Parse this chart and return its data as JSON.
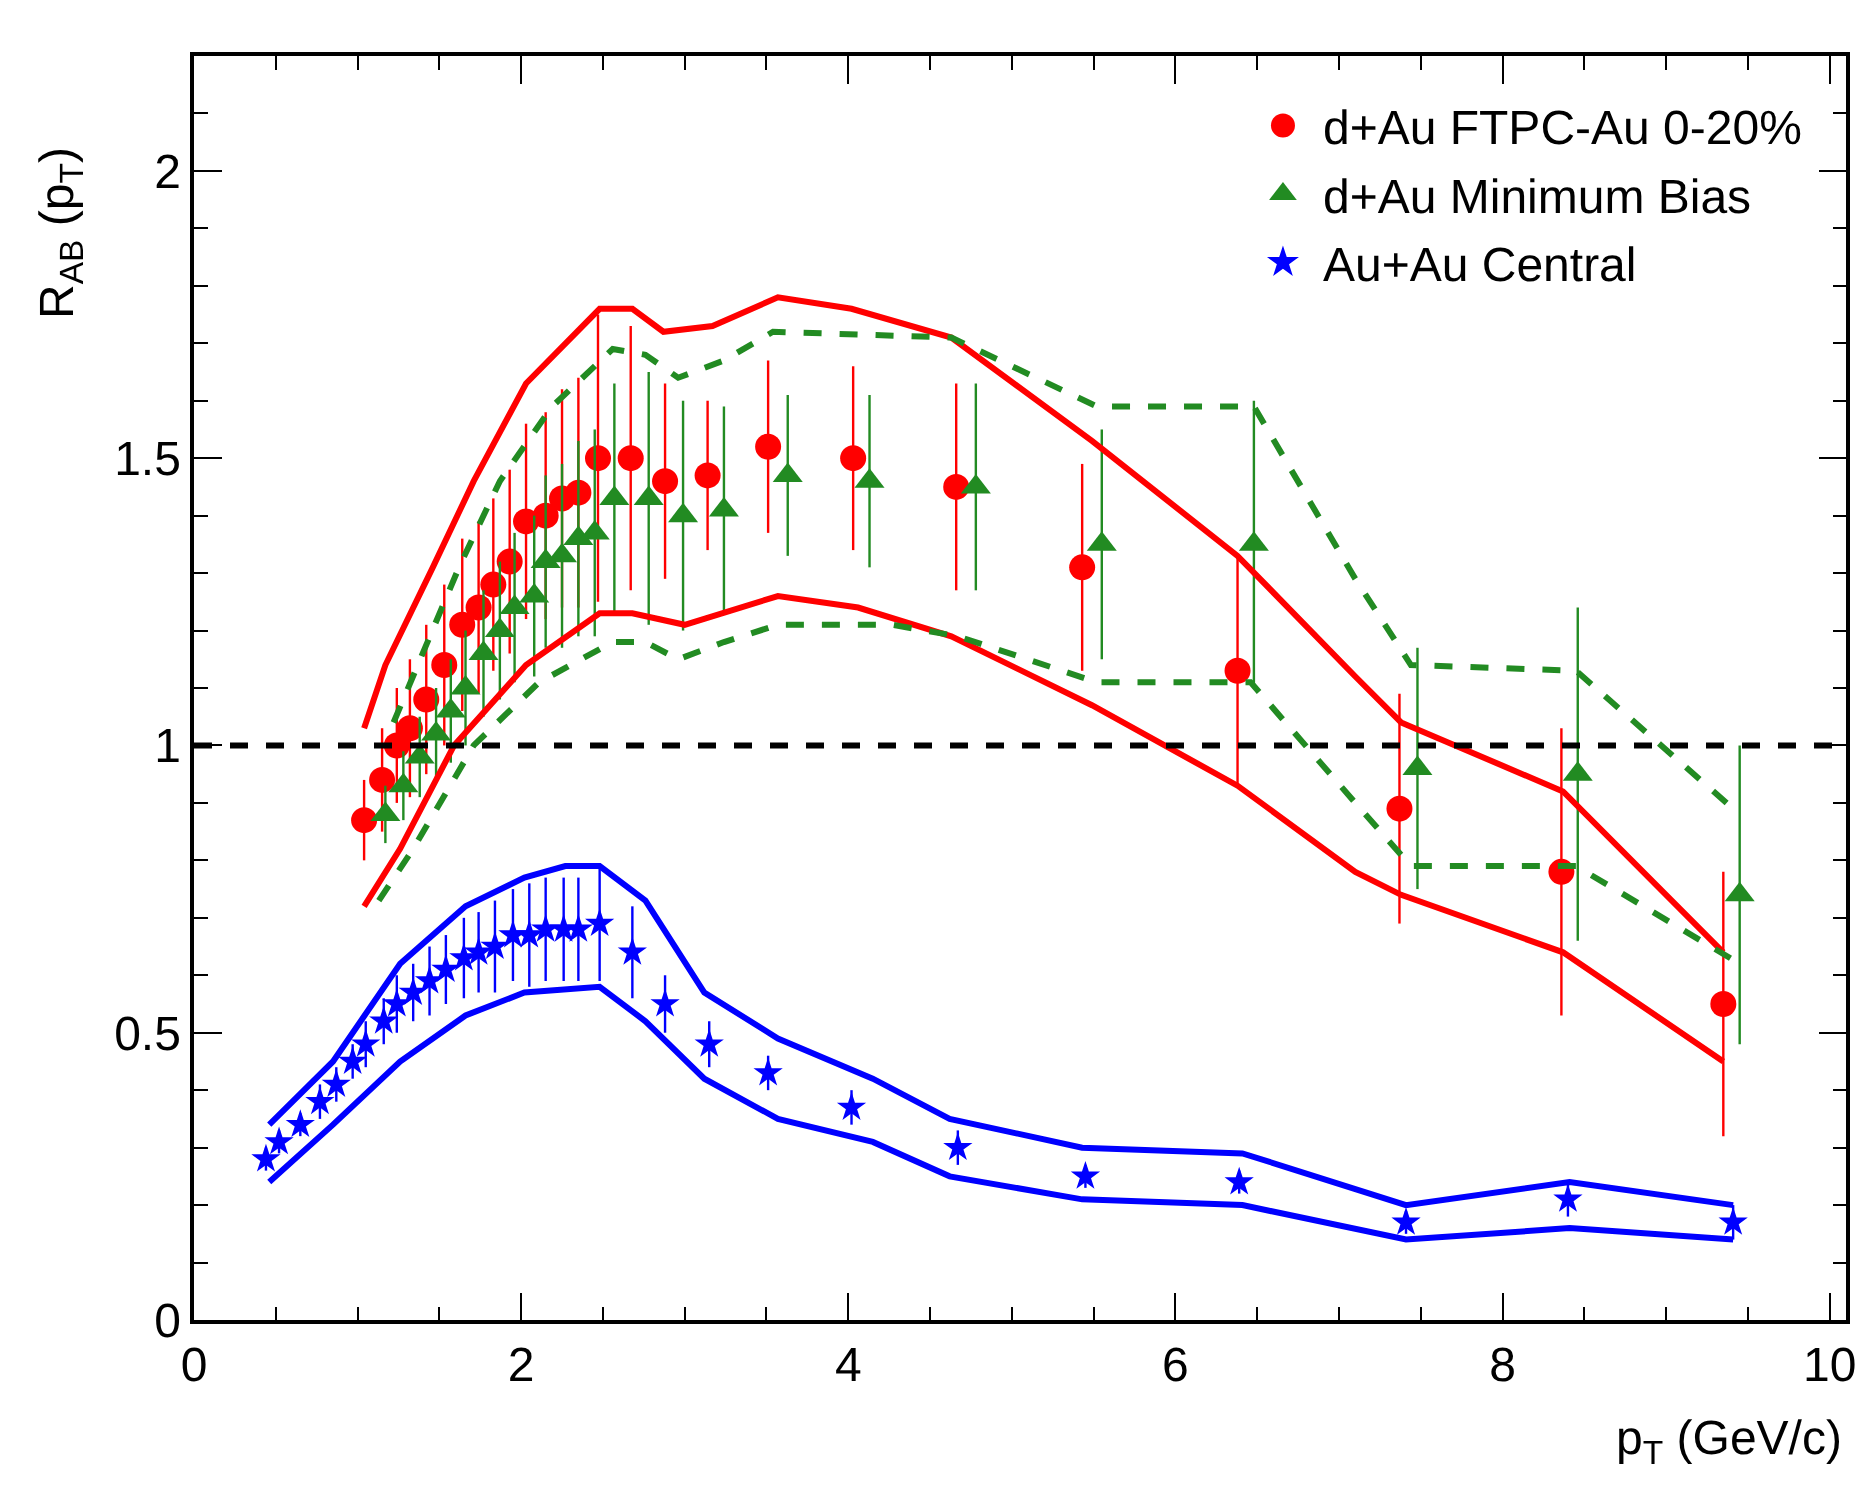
{
  "chart_data": {
    "type": "scatter",
    "xlabel": "p$_{T}$ (GeV/c)",
    "ylabel": "R$_{AB}$ (p$_{T}$)",
    "xlim": [
      0,
      10.1
    ],
    "xticks": [
      0,
      2,
      4,
      6,
      8,
      10
    ],
    "ylim": [
      0,
      2.2
    ],
    "yticks": [
      0,
      0.5,
      1,
      1.5,
      2
    ],
    "grid": false,
    "legend": "top right",
    "ref_lines": [
      {
        "axis": "y",
        "value": 1,
        "color": "#000000",
        "line_style": "dashed"
      }
    ],
    "series": [
      {
        "name": "d+Au FTPC-Au 0-20%",
        "color": "#ff0000",
        "marker": "circle",
        "x": [
          1.04,
          1.15,
          1.24,
          1.32,
          1.42,
          1.53,
          1.64,
          1.74,
          1.83,
          1.93,
          2.03,
          2.15,
          2.25,
          2.35,
          2.47,
          2.67,
          2.88,
          3.14,
          3.51,
          4.03,
          4.66,
          5.43,
          6.38,
          7.37,
          8.36,
          9.35
        ],
        "values": [
          0.87,
          0.94,
          1.0,
          1.03,
          1.08,
          1.14,
          1.21,
          1.24,
          1.28,
          1.32,
          1.39,
          1.4,
          1.43,
          1.44,
          1.5,
          1.5,
          1.46,
          1.47,
          1.52,
          1.5,
          1.45,
          1.31,
          1.13,
          0.89,
          0.78,
          0.55
        ],
        "errors": [
          0.07,
          0.09,
          0.1,
          0.12,
          0.13,
          0.14,
          0.15,
          0.15,
          0.15,
          0.16,
          0.17,
          0.18,
          0.19,
          0.2,
          0.25,
          0.23,
          0.17,
          0.13,
          0.15,
          0.16,
          0.18,
          0.18,
          0.2,
          0.2,
          0.25,
          0.23
        ]
      },
      {
        "name": "d+Au Minimum Bias",
        "color": "#228b22",
        "marker": "triangle",
        "x": [
          1.17,
          1.28,
          1.38,
          1.48,
          1.57,
          1.66,
          1.77,
          1.87,
          1.96,
          2.08,
          2.15,
          2.25,
          2.35,
          2.45,
          2.57,
          2.78,
          2.99,
          3.24,
          3.63,
          4.13,
          4.78,
          5.55,
          6.48,
          7.48,
          8.46,
          9.45
        ],
        "values": [
          0.88,
          0.93,
          0.98,
          1.02,
          1.06,
          1.1,
          1.16,
          1.2,
          1.24,
          1.26,
          1.32,
          1.33,
          1.36,
          1.37,
          1.43,
          1.43,
          1.4,
          1.41,
          1.47,
          1.46,
          1.45,
          1.35,
          1.35,
          0.96,
          0.95,
          0.74
        ],
        "errors": [
          0.05,
          0.06,
          0.07,
          0.08,
          0.09,
          0.1,
          0.11,
          0.12,
          0.13,
          0.14,
          0.15,
          0.16,
          0.17,
          0.18,
          0.2,
          0.22,
          0.2,
          0.18,
          0.14,
          0.15,
          0.18,
          0.2,
          0.25,
          0.21,
          0.29,
          0.26
        ]
      },
      {
        "name": "Au+Au Central",
        "color": "#0000ff",
        "marker": "star",
        "x": [
          0.44,
          0.52,
          0.65,
          0.77,
          0.87,
          0.97,
          1.05,
          1.16,
          1.24,
          1.34,
          1.44,
          1.54,
          1.65,
          1.74,
          1.84,
          1.95,
          2.05,
          2.15,
          2.26,
          2.35,
          2.48,
          2.68,
          2.88,
          3.15,
          3.51,
          4.02,
          4.67,
          5.45,
          6.39,
          7.41,
          8.4,
          9.41
        ],
        "values": [
          0.28,
          0.31,
          0.34,
          0.38,
          0.41,
          0.45,
          0.48,
          0.52,
          0.55,
          0.57,
          0.59,
          0.61,
          0.63,
          0.64,
          0.65,
          0.67,
          0.67,
          0.68,
          0.68,
          0.68,
          0.69,
          0.64,
          0.55,
          0.48,
          0.43,
          0.37,
          0.3,
          0.25,
          0.24,
          0.17,
          0.21,
          0.17
        ],
        "errors": [
          0.02,
          0.02,
          0.02,
          0.03,
          0.03,
          0.03,
          0.04,
          0.04,
          0.05,
          0.05,
          0.06,
          0.06,
          0.07,
          0.07,
          0.08,
          0.08,
          0.09,
          0.09,
          0.09,
          0.09,
          0.1,
          0.08,
          0.05,
          0.04,
          0.03,
          0.03,
          0.03,
          0.02,
          0.02,
          0.02,
          0.03,
          0.03
        ]
      },
      {
        "type": "line",
        "color": "#ff0000",
        "line_style": "solid",
        "x": [
          1.04,
          1.17,
          1.46,
          1.71,
          2.03,
          2.48,
          2.68,
          2.87,
          3.17,
          3.57,
          4.02,
          4.63,
          5.49,
          6.38,
          7.1,
          7.38,
          8.37,
          9.35
        ],
        "values": [
          1.03,
          1.14,
          1.31,
          1.46,
          1.63,
          1.76,
          1.76,
          1.72,
          1.73,
          1.78,
          1.76,
          1.71,
          1.53,
          1.33,
          1.12,
          1.04,
          0.92,
          0.64
        ]
      },
      {
        "type": "line",
        "color": "#ff0000",
        "line_style": "solid",
        "x": [
          1.04,
          1.26,
          1.59,
          2.03,
          2.48,
          2.68,
          3.0,
          3.57,
          4.06,
          4.63,
          5.49,
          6.38,
          7.1,
          7.38,
          8.37,
          9.35
        ],
        "values": [
          0.72,
          0.82,
          1.0,
          1.14,
          1.23,
          1.23,
          1.21,
          1.26,
          1.24,
          1.19,
          1.07,
          0.93,
          0.78,
          0.74,
          0.64,
          0.45
        ]
      },
      {
        "type": "line",
        "color": "#228b22",
        "line_style": "dashed",
        "x": [
          1.22,
          1.62,
          1.87,
          2.19,
          2.56,
          2.76,
          2.96,
          3.24,
          3.54,
          4.63,
          5.52,
          6.48,
          7.1,
          7.44,
          8.45,
          9.45
        ],
        "values": [
          1.04,
          1.31,
          1.46,
          1.59,
          1.69,
          1.68,
          1.64,
          1.67,
          1.72,
          1.71,
          1.59,
          1.59,
          1.29,
          1.14,
          1.13,
          0.88
        ]
      },
      {
        "type": "line",
        "color": "#228b22",
        "line_style": "dashed",
        "x": [
          1.13,
          1.34,
          1.71,
          2.11,
          2.56,
          2.76,
          2.96,
          3.24,
          3.57,
          4.27,
          4.67,
          5.52,
          6.46,
          7.1,
          7.44,
          8.45,
          9.45
        ],
        "values": [
          0.73,
          0.82,
          1.0,
          1.11,
          1.18,
          1.18,
          1.15,
          1.18,
          1.21,
          1.21,
          1.19,
          1.11,
          1.11,
          0.9,
          0.79,
          0.79,
          0.62
        ]
      },
      {
        "type": "line",
        "color": "#0000ff",
        "line_style": "solid",
        "x": [
          0.46,
          0.85,
          1.26,
          1.66,
          2.02,
          2.27,
          2.48,
          2.76,
          3.12,
          3.57,
          4.15,
          4.62,
          5.43,
          6.41,
          7.41,
          8.41,
          9.41
        ],
        "values": [
          0.34,
          0.45,
          0.62,
          0.72,
          0.77,
          0.79,
          0.79,
          0.73,
          0.57,
          0.49,
          0.42,
          0.35,
          0.3,
          0.29,
          0.2,
          0.24,
          0.2
        ]
      },
      {
        "type": "line",
        "color": "#0000ff",
        "line_style": "solid",
        "x": [
          0.46,
          0.85,
          1.26,
          1.66,
          2.02,
          2.48,
          2.76,
          3.12,
          3.57,
          4.15,
          4.62,
          5.43,
          6.41,
          7.41,
          8.41,
          9.41
        ],
        "values": [
          0.24,
          0.34,
          0.45,
          0.53,
          0.57,
          0.58,
          0.52,
          0.42,
          0.35,
          0.31,
          0.25,
          0.21,
          0.2,
          0.14,
          0.16,
          0.14
        ]
      }
    ]
  }
}
